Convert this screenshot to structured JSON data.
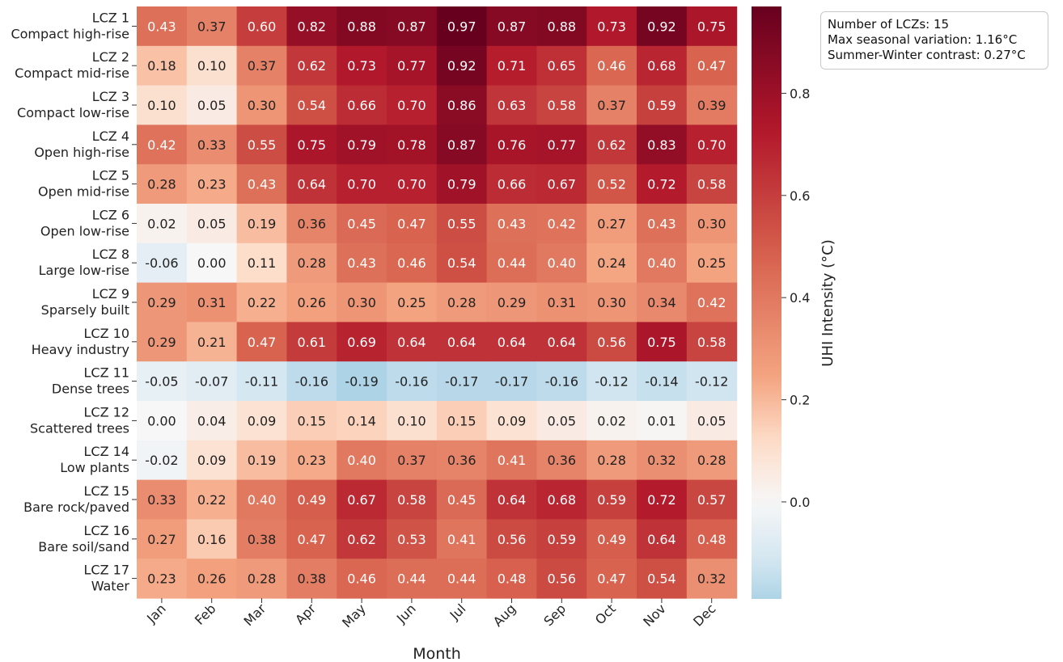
{
  "chart_data": {
    "type": "heatmap",
    "xlabel": "Month",
    "ylabel": "",
    "colorbar_label": "UHI Intensity (°C)",
    "colorbar_ticks": [
      0.0,
      0.2,
      0.4,
      0.6,
      0.8
    ],
    "colorbar_tick_labels": [
      "0.0",
      "0.2",
      "0.4",
      "0.6",
      "0.8"
    ],
    "colormap": "RdBu_r (centered at 0)",
    "x_categories": [
      "Jan",
      "Feb",
      "Mar",
      "Apr",
      "May",
      "Jun",
      "Jul",
      "Aug",
      "Sep",
      "Oct",
      "Nov",
      "Dec"
    ],
    "rows": [
      {
        "zone": "LCZ 1",
        "name": "Compact high-rise",
        "values": [
          0.43,
          0.37,
          0.6,
          0.82,
          0.88,
          0.87,
          0.97,
          0.87,
          0.88,
          0.73,
          0.92,
          0.75
        ]
      },
      {
        "zone": "LCZ 2",
        "name": "Compact mid-rise",
        "values": [
          0.18,
          0.1,
          0.37,
          0.62,
          0.73,
          0.77,
          0.92,
          0.71,
          0.65,
          0.46,
          0.68,
          0.47
        ]
      },
      {
        "zone": "LCZ 3",
        "name": "Compact low-rise",
        "values": [
          0.1,
          0.05,
          0.3,
          0.54,
          0.66,
          0.7,
          0.86,
          0.63,
          0.58,
          0.37,
          0.59,
          0.39
        ]
      },
      {
        "zone": "LCZ 4",
        "name": "Open high-rise",
        "values": [
          0.42,
          0.33,
          0.55,
          0.75,
          0.79,
          0.78,
          0.87,
          0.76,
          0.77,
          0.62,
          0.83,
          0.7
        ]
      },
      {
        "zone": "LCZ 5",
        "name": "Open mid-rise",
        "values": [
          0.28,
          0.23,
          0.43,
          0.64,
          0.7,
          0.7,
          0.79,
          0.66,
          0.67,
          0.52,
          0.72,
          0.58
        ]
      },
      {
        "zone": "LCZ 6",
        "name": "Open low-rise",
        "values": [
          0.02,
          0.05,
          0.19,
          0.36,
          0.45,
          0.47,
          0.55,
          0.43,
          0.42,
          0.27,
          0.43,
          0.3
        ]
      },
      {
        "zone": "LCZ 8",
        "name": "Large low-rise",
        "values": [
          -0.06,
          0.0,
          0.11,
          0.28,
          0.43,
          0.46,
          0.54,
          0.44,
          0.4,
          0.24,
          0.4,
          0.25
        ]
      },
      {
        "zone": "LCZ 9",
        "name": "Sparsely built",
        "values": [
          0.29,
          0.31,
          0.22,
          0.26,
          0.3,
          0.25,
          0.28,
          0.29,
          0.31,
          0.3,
          0.34,
          0.42
        ]
      },
      {
        "zone": "LCZ 10",
        "name": "Heavy industry",
        "values": [
          0.29,
          0.21,
          0.47,
          0.61,
          0.69,
          0.64,
          0.64,
          0.64,
          0.64,
          0.56,
          0.75,
          0.58
        ]
      },
      {
        "zone": "LCZ 11",
        "name": "Dense trees",
        "values": [
          -0.05,
          -0.07,
          -0.11,
          -0.16,
          -0.19,
          -0.16,
          -0.17,
          -0.17,
          -0.16,
          -0.12,
          -0.14,
          -0.12
        ]
      },
      {
        "zone": "LCZ 12",
        "name": "Scattered trees",
        "values": [
          -0.0,
          0.04,
          0.09,
          0.15,
          0.14,
          0.1,
          0.15,
          0.09,
          0.05,
          0.02,
          0.01,
          0.05
        ]
      },
      {
        "zone": "LCZ 14",
        "name": "Low plants",
        "values": [
          -0.02,
          0.09,
          0.19,
          0.23,
          0.4,
          0.37,
          0.36,
          0.41,
          0.36,
          0.28,
          0.32,
          0.28
        ]
      },
      {
        "zone": "LCZ 15",
        "name": "Bare rock/paved",
        "values": [
          0.33,
          0.22,
          0.4,
          0.49,
          0.67,
          0.58,
          0.45,
          0.64,
          0.68,
          0.59,
          0.72,
          0.57
        ]
      },
      {
        "zone": "LCZ 16",
        "name": "Bare soil/sand",
        "values": [
          0.27,
          0.16,
          0.38,
          0.47,
          0.62,
          0.53,
          0.41,
          0.56,
          0.59,
          0.49,
          0.64,
          0.48
        ]
      },
      {
        "zone": "LCZ 17",
        "name": "Water",
        "values": [
          0.23,
          0.26,
          0.28,
          0.38,
          0.46,
          0.44,
          0.44,
          0.48,
          0.56,
          0.47,
          0.54,
          0.32
        ]
      }
    ],
    "value_range": [
      -0.19,
      0.97
    ],
    "annotations": [
      "Number of LCZs: 15",
      "Max seasonal variation: 1.16°C",
      "Summer-Winter contrast: 0.27°C"
    ]
  }
}
